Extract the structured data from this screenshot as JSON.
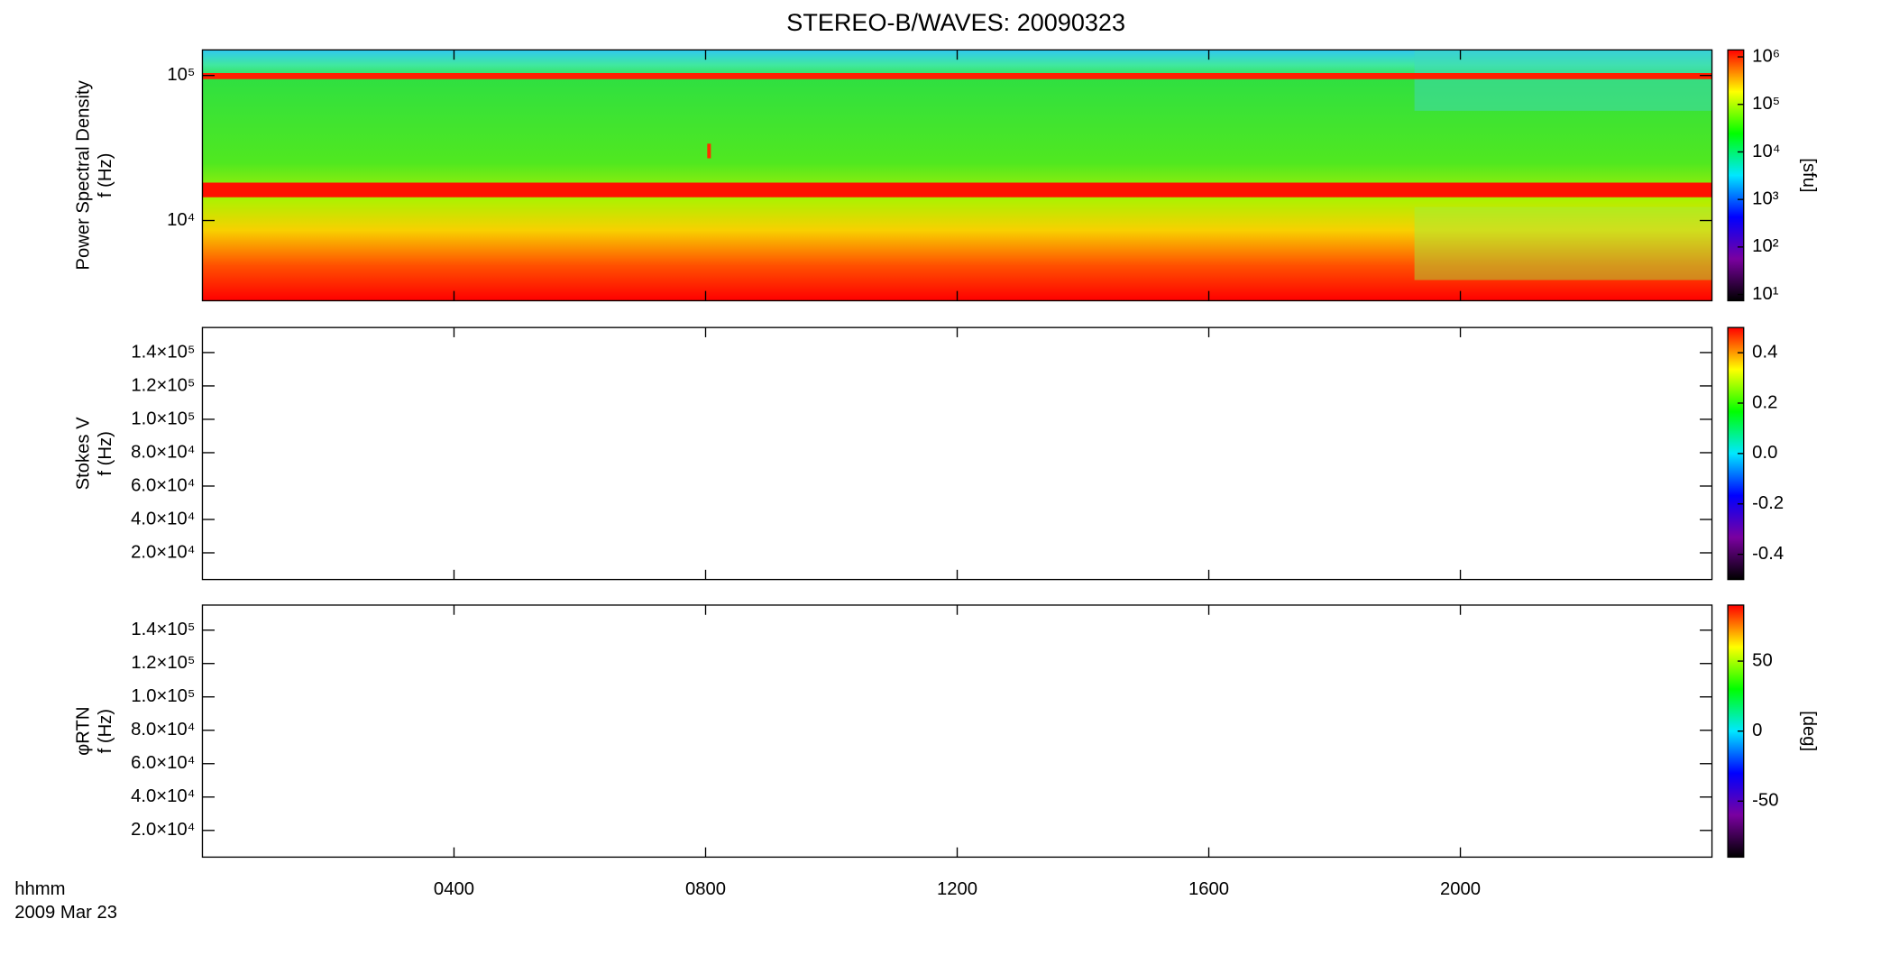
{
  "colormap": [
    "#000000",
    "#7a00a0",
    "#0000ff",
    "#00e8ff",
    "#00ff00",
    "#ffff00",
    "#ff0000"
  ],
  "chart_data": [
    {
      "type": "spectrogram",
      "title": "STEREO-B/WAVES: 20090323",
      "ylabel": [
        "Power Spectral Density",
        "f (Hz)"
      ],
      "ylog": true,
      "ylim": [
        2800,
        150000
      ],
      "yticks": [
        {
          "value": 10000,
          "label": "10⁴"
        },
        {
          "value": 100000,
          "label": "10⁵"
        }
      ],
      "zlog": true,
      "zlim": [
        7.4,
        1400000
      ],
      "zticks": [
        {
          "value": 10,
          "label": "10¹"
        },
        {
          "value": 100,
          "label": "10²"
        },
        {
          "value": 1000,
          "label": "10³"
        },
        {
          "value": 10000,
          "label": "10⁴"
        },
        {
          "value": 100000,
          "label": "10⁵"
        },
        {
          "value": 1000000,
          "label": "10⁶"
        }
      ],
      "zlabel": "[sfu]"
    },
    {
      "type": "spectrogram",
      "ylabel": [
        "Stokes V",
        "f (Hz)"
      ],
      "ylog": false,
      "ylim": [
        4000,
        155000
      ],
      "yticks": [
        {
          "value": 20000,
          "label": "2.0×10⁴"
        },
        {
          "value": 40000,
          "label": "4.0×10⁴"
        },
        {
          "value": 60000,
          "label": "6.0×10⁴"
        },
        {
          "value": 80000,
          "label": "8.0×10⁴"
        },
        {
          "value": 100000,
          "label": "1.0×10⁵"
        },
        {
          "value": 120000,
          "label": "1.2×10⁵"
        },
        {
          "value": 140000,
          "label": "1.4×10⁵"
        }
      ],
      "zlog": false,
      "zlim": [
        -0.5,
        0.5
      ],
      "zticks": [
        -0.4,
        -0.2,
        {
          "value": 0,
          "label": "0.0"
        },
        0.2,
        0.4
      ]
    },
    {
      "type": "spectrogram",
      "ylabel": [
        "φRTN",
        "f (Hz)"
      ],
      "ylog": false,
      "ylim": [
        4000,
        155000
      ],
      "yticks": [
        {
          "value": 20000,
          "label": "2.0×10⁴"
        },
        {
          "value": 40000,
          "label": "4.0×10⁴"
        },
        {
          "value": 60000,
          "label": "6.0×10⁴"
        },
        {
          "value": 80000,
          "label": "8.0×10⁴"
        },
        {
          "value": 100000,
          "label": "1.0×10⁵"
        },
        {
          "value": 120000,
          "label": "1.2×10⁵"
        },
        {
          "value": 140000,
          "label": "1.4×10⁵"
        }
      ],
      "zlog": false,
      "zlim": [
        -90,
        90
      ],
      "zticks": [
        -50,
        0,
        50
      ],
      "zlabel": "[deg]",
      "xlim": [
        0,
        24
      ],
      "xticks": [
        {
          "value": 4,
          "label": "0400"
        },
        {
          "value": 8,
          "label": "0800"
        },
        {
          "value": 12,
          "label": "1200"
        },
        {
          "value": 16,
          "label": "1600"
        },
        {
          "value": 20,
          "label": "2000"
        }
      ],
      "xlabel": "hhmm",
      "date": "2009 Mar 23"
    }
  ]
}
